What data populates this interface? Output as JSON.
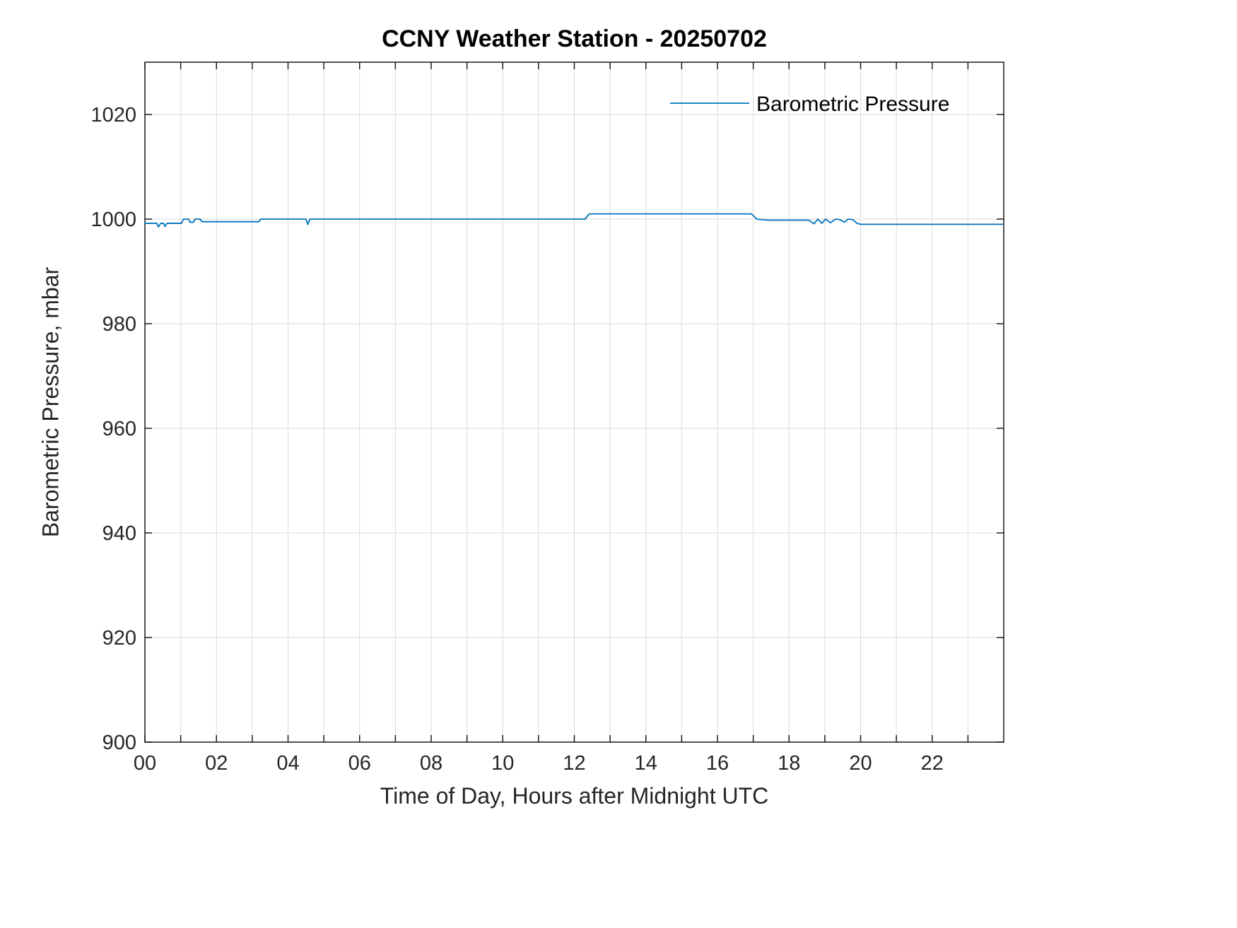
{
  "chart_data": {
    "type": "line",
    "title": "CCNY Weather Station - 20250702",
    "xlabel": "Time of Day, Hours after Midnight UTC",
    "ylabel": "Barometric Pressure, mbar",
    "xlim": [
      0,
      24
    ],
    "ylim": [
      900,
      1030
    ],
    "grid": true,
    "colors": {
      "line": "#0072BD",
      "grid": "#dbdbdb",
      "axis": "#1a1a1a",
      "tick_text": "#262626",
      "legend_text": "#000000"
    },
    "xticks": {
      "values": [
        0,
        2,
        4,
        6,
        8,
        10,
        12,
        14,
        16,
        18,
        20,
        22
      ],
      "labels": [
        "00",
        "02",
        "04",
        "06",
        "08",
        "10",
        "12",
        "14",
        "16",
        "18",
        "20",
        "22"
      ],
      "minor_step": 1
    },
    "yticks": {
      "values": [
        900,
        920,
        940,
        960,
        980,
        1000,
        1020
      ],
      "labels": [
        "900",
        "920",
        "940",
        "960",
        "980",
        "1000",
        "1020"
      ]
    },
    "legend": {
      "position": "top-right",
      "entries": [
        {
          "label": "Barometric Pressure",
          "color": "#0072BD"
        }
      ]
    },
    "series": [
      {
        "name": "Barometric Pressure",
        "color": "#0072BD",
        "points": [
          [
            0.0,
            999.2
          ],
          [
            0.33,
            999.2
          ],
          [
            0.38,
            998.5
          ],
          [
            0.44,
            999.2
          ],
          [
            0.52,
            999.2
          ],
          [
            0.56,
            998.6
          ],
          [
            0.62,
            999.2
          ],
          [
            1.02,
            999.2
          ],
          [
            1.08,
            1000.0
          ],
          [
            1.22,
            1000.0
          ],
          [
            1.26,
            999.4
          ],
          [
            1.36,
            999.4
          ],
          [
            1.4,
            1000.0
          ],
          [
            1.54,
            1000.0
          ],
          [
            1.6,
            999.5
          ],
          [
            3.18,
            999.5
          ],
          [
            3.24,
            1000.0
          ],
          [
            4.5,
            1000.0
          ],
          [
            4.55,
            999.0
          ],
          [
            4.61,
            1000.0
          ],
          [
            12.3,
            1000.0
          ],
          [
            12.42,
            1001.0
          ],
          [
            16.95,
            1001.0
          ],
          [
            17.1,
            1000.0
          ],
          [
            17.4,
            999.8
          ],
          [
            18.55,
            999.8
          ],
          [
            18.7,
            999.1
          ],
          [
            18.8,
            1000.0
          ],
          [
            18.92,
            999.2
          ],
          [
            19.02,
            1000.0
          ],
          [
            19.16,
            999.3
          ],
          [
            19.3,
            1000.0
          ],
          [
            19.42,
            999.9
          ],
          [
            19.55,
            999.4
          ],
          [
            19.65,
            1000.0
          ],
          [
            19.78,
            999.9
          ],
          [
            19.9,
            999.2
          ],
          [
            20.0,
            999.0
          ],
          [
            23.97,
            999.0
          ]
        ]
      }
    ]
  }
}
